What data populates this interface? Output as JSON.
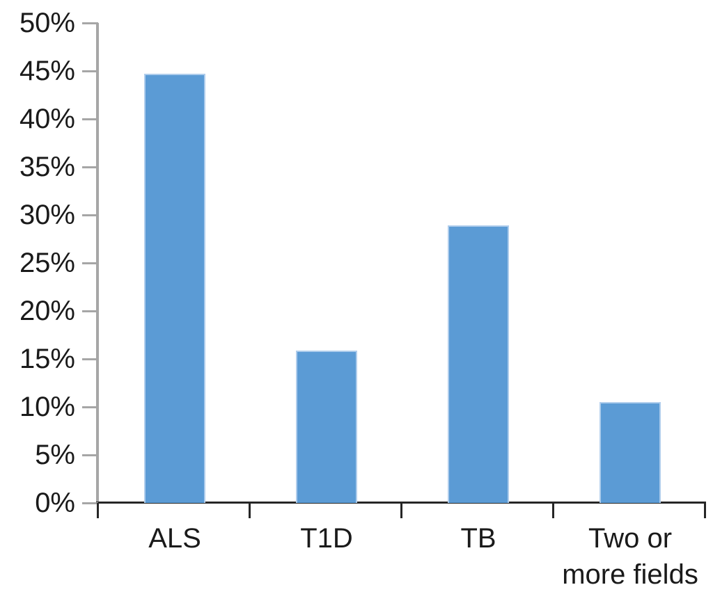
{
  "chart_data": {
    "type": "bar",
    "title": "",
    "xlabel": "",
    "ylabel": "",
    "categories": [
      "ALS",
      "T1D",
      "TB",
      "Two or\nmore fields"
    ],
    "values": [
      44.7,
      15.9,
      28.9,
      10.5
    ],
    "ylim": [
      0,
      50
    ],
    "ytick_step": 5,
    "ytick_labels": [
      "0%",
      "5%",
      "10%",
      "15%",
      "20%",
      "25%",
      "30%",
      "35%",
      "40%",
      "45%",
      "50%"
    ],
    "grid": false,
    "legend": null,
    "colors": {
      "bar_fill": "#5B9BD5",
      "bar_edge": "#AFCDEC",
      "y_axis": "#A6A6A6",
      "x_axis": "#262626",
      "text": "#1A1A1A"
    }
  }
}
